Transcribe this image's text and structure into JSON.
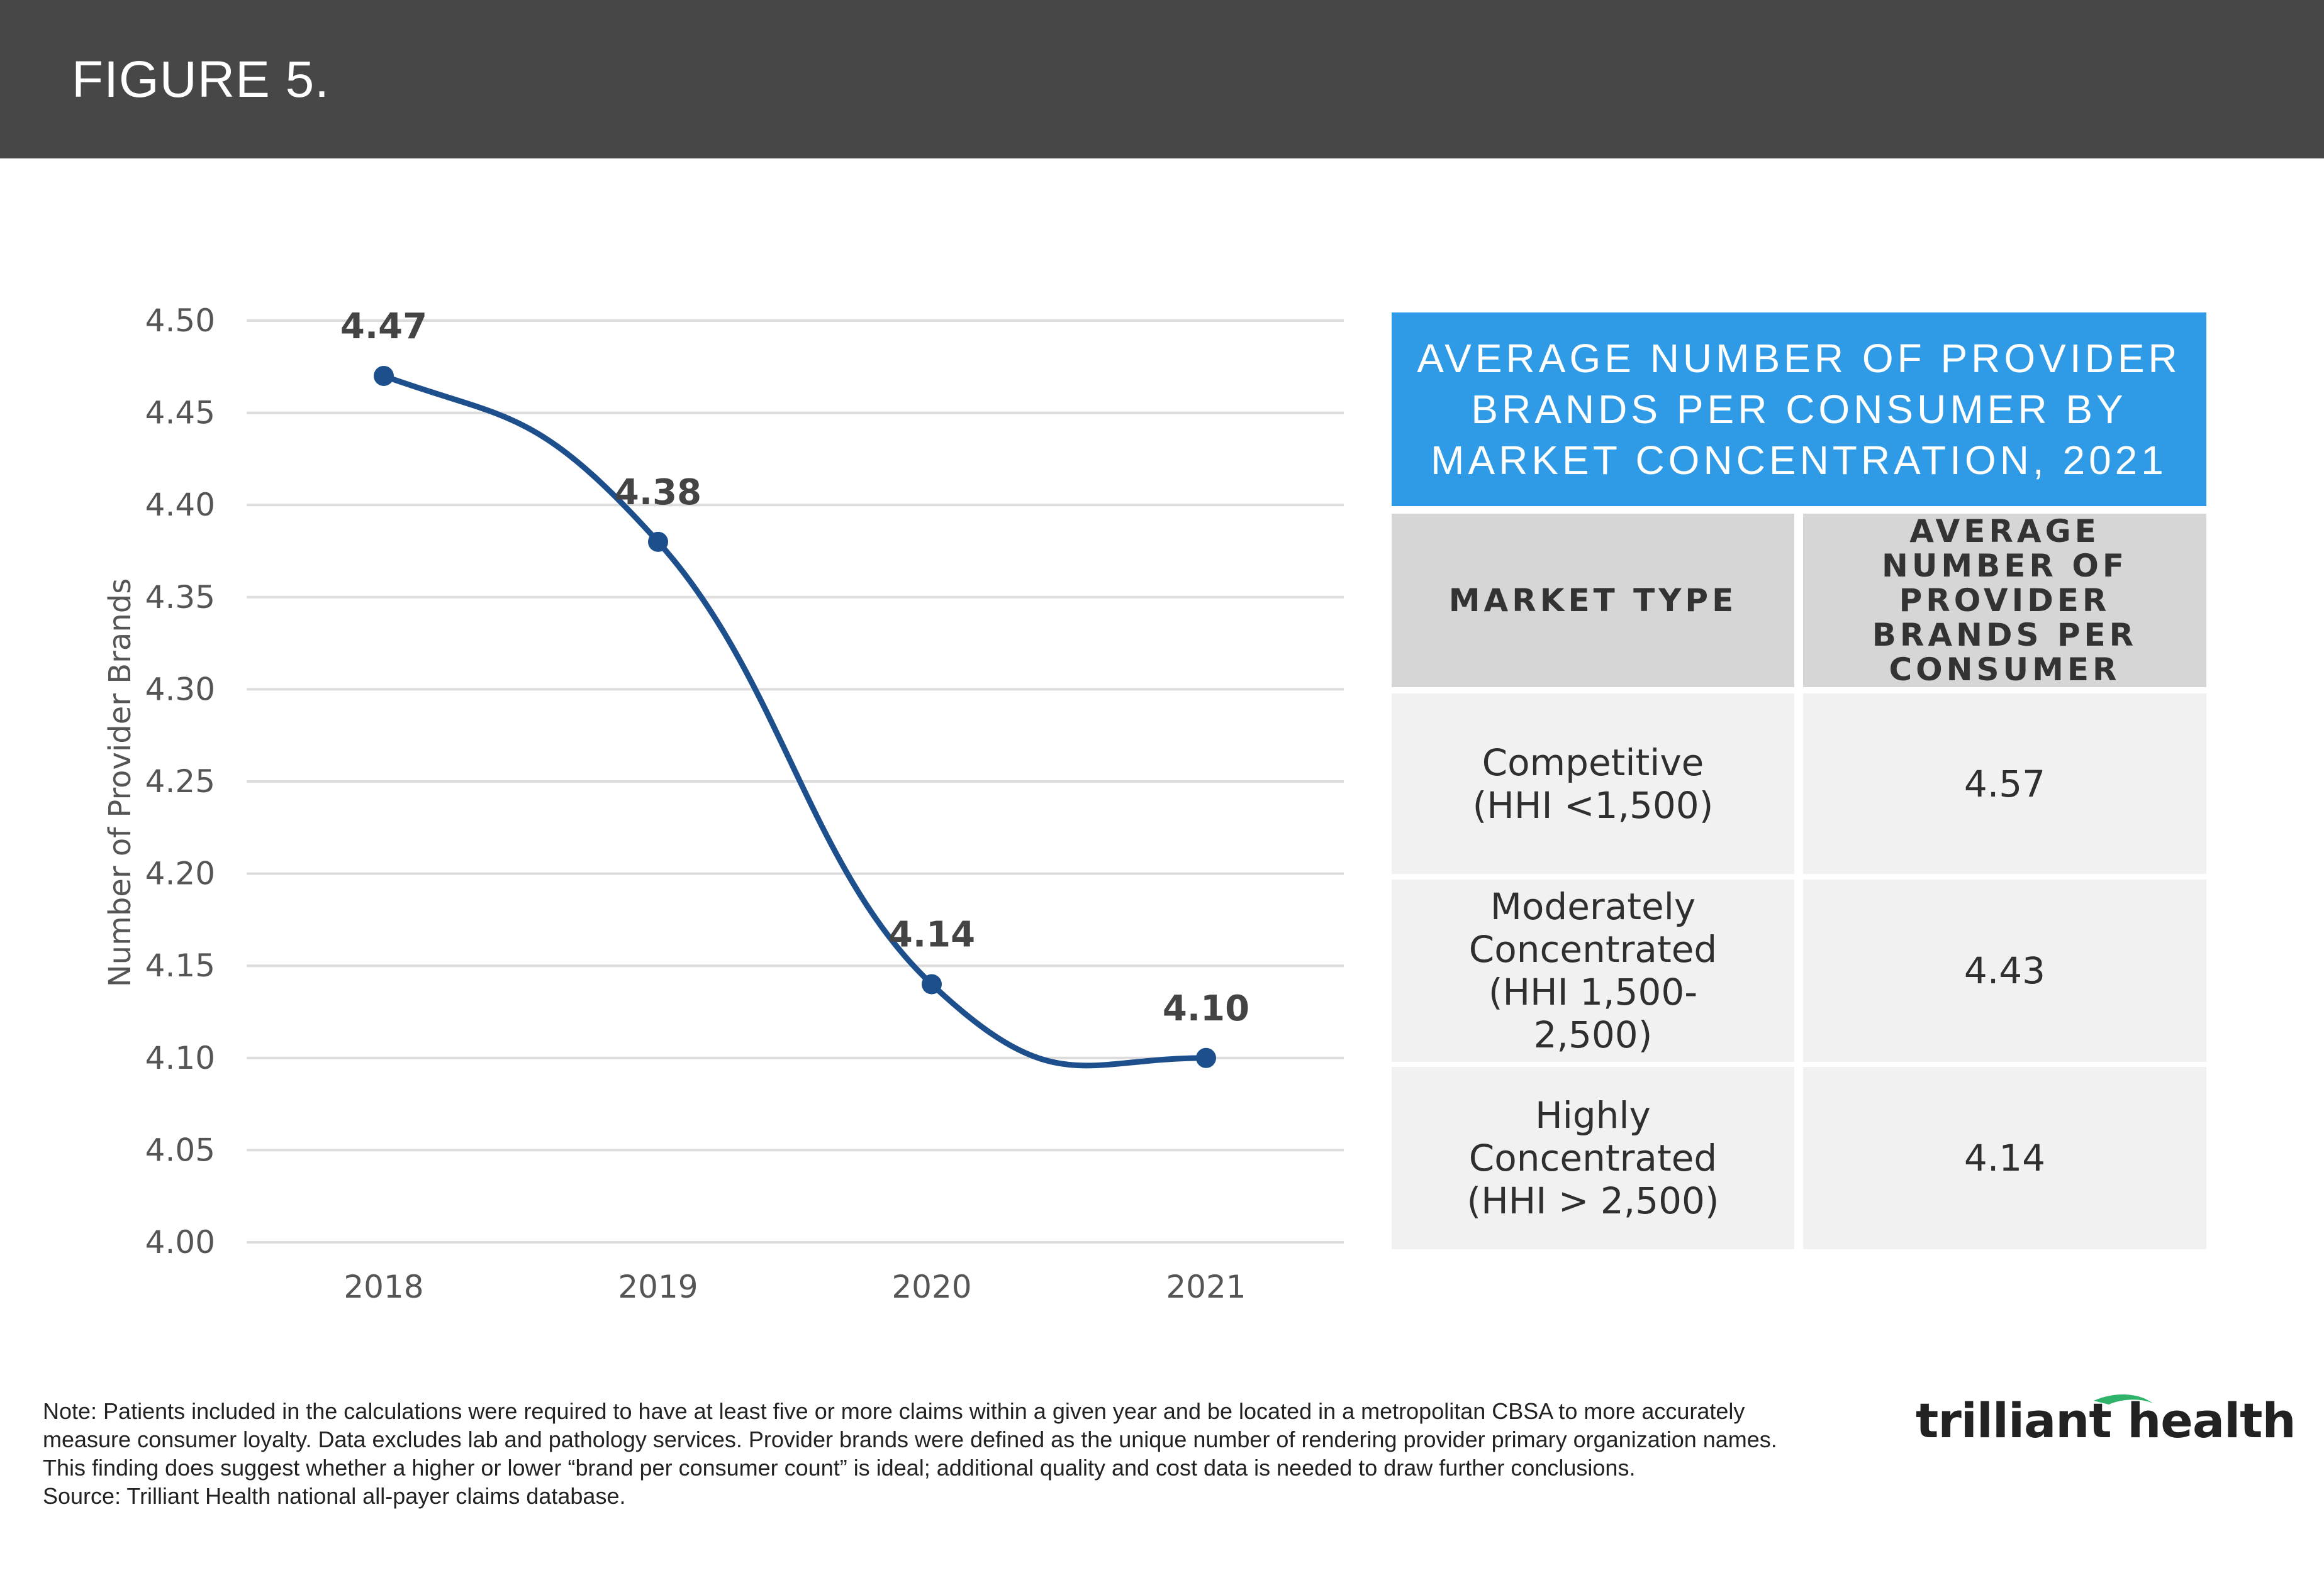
{
  "header": {
    "title": "FIGURE 5."
  },
  "chart_data": {
    "type": "line",
    "ylabel": "Number of Provider Brands",
    "xlabel": "",
    "categories": [
      "2018",
      "2019",
      "2020",
      "2021"
    ],
    "values": [
      4.47,
      4.38,
      4.14,
      4.1
    ],
    "data_labels": [
      "4.47",
      "4.38",
      "4.14",
      "4.10"
    ],
    "ylim": [
      4.0,
      4.5
    ],
    "yticks": [
      "4.00",
      "4.05",
      "4.10",
      "4.15",
      "4.20",
      "4.25",
      "4.30",
      "4.35",
      "4.40",
      "4.45",
      "4.50"
    ],
    "grid": true,
    "line_color": "#1d4f8c"
  },
  "table": {
    "title": "AVERAGE NUMBER OF PROVIDER BRANDS PER CONSUMER BY MARKET CONCENTRATION, 2021",
    "title_color": "#2f9be6",
    "columns": [
      "MARKET TYPE",
      "AVERAGE NUMBER OF PROVIDER BRANDS PER CONSUMER"
    ],
    "rows": [
      {
        "market": "Competitive (HHI <1,500)",
        "value": "4.57"
      },
      {
        "market": "Moderately Concentrated (HHI 1,500-2,500)",
        "value": "4.43"
      },
      {
        "market": "Highly Concentrated (HHI > 2,500)",
        "value": "4.14"
      }
    ]
  },
  "note": {
    "lines": [
      "Note: Patients included in the calculations were required to have at least five or more claims within a given year and be located in a metropolitan CBSA to more accurately",
      "measure consumer loyalty. Data excludes lab and pathology services. Provider brands were defined as the unique number of rendering provider primary organization names.",
      "This finding does suggest whether a higher or lower “brand per consumer count” is ideal; additional quality and cost data is needed to draw further conclusions.",
      "Source: Trilliant Health national all-payer claims database."
    ]
  },
  "logo": {
    "text": "trilliant health",
    "accent": "#2fb36b"
  }
}
